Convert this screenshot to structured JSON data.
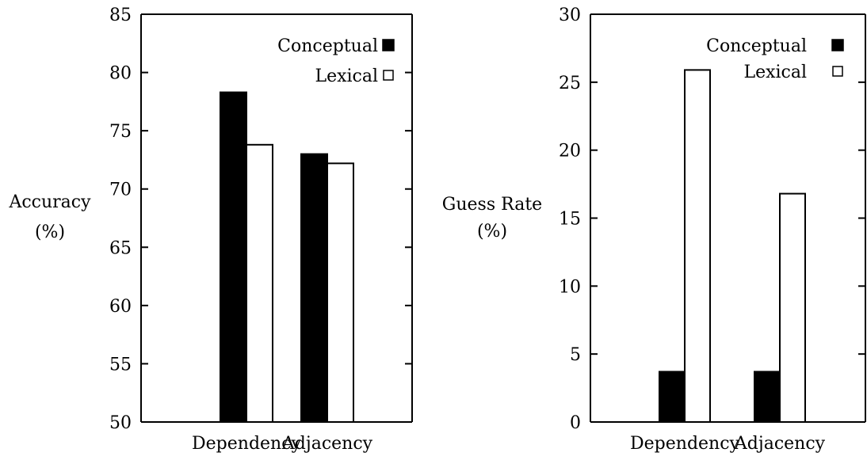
{
  "chart_data": [
    {
      "type": "bar",
      "categories": [
        "Dependency",
        "Adjacency"
      ],
      "series": [
        {
          "name": "Conceptual",
          "values": [
            78.3,
            73.0
          ],
          "color": "#000000"
        },
        {
          "name": "Lexical",
          "values": [
            73.8,
            72.2
          ],
          "color": "#ffffff"
        }
      ],
      "ylabel": [
        "Accuracy",
        "(%)"
      ],
      "ylim": [
        50,
        85
      ],
      "yticks": [
        50,
        55,
        60,
        65,
        70,
        75,
        80,
        85
      ],
      "legend": "top-right",
      "grid": false
    },
    {
      "type": "bar",
      "categories": [
        "Dependency",
        "Adjacency"
      ],
      "series": [
        {
          "name": "Conceptual",
          "values": [
            3.7,
            3.7
          ],
          "color": "#000000"
        },
        {
          "name": "Lexical",
          "values": [
            25.9,
            16.8
          ],
          "color": "#ffffff"
        }
      ],
      "ylabel": [
        "Guess Rate",
        "(%)"
      ],
      "ylim": [
        0,
        30
      ],
      "yticks": [
        0,
        5,
        10,
        15,
        20,
        25,
        30
      ],
      "legend": "top-right",
      "grid": false
    }
  ]
}
